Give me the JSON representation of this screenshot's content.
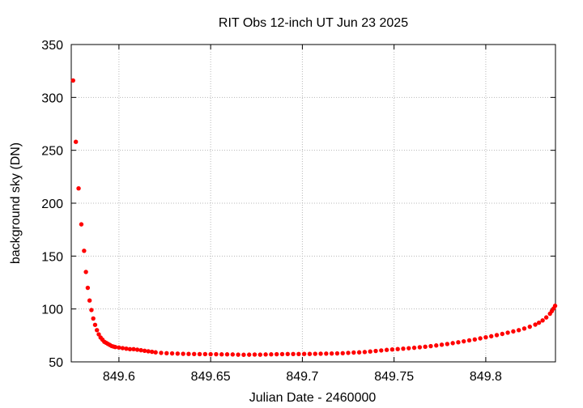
{
  "chart_data": {
    "type": "scatter",
    "title": "RIT Obs 12-inch UT Jun 23 2025",
    "xlabel": "Julian Date - 2460000",
    "ylabel": "background sky (DN)",
    "xlim": [
      849.574,
      849.838
    ],
    "ylim": [
      50,
      350
    ],
    "xticks": [
      849.6,
      849.65,
      849.7,
      849.75,
      849.8
    ],
    "xtick_labels": [
      "849.6",
      "849.65",
      "849.7",
      "849.75",
      "849.8"
    ],
    "yticks": [
      50,
      100,
      150,
      200,
      250,
      300,
      350
    ],
    "ytick_labels": [
      "50",
      "100",
      "150",
      "200",
      "250",
      "300",
      "350"
    ],
    "grid": true,
    "point_color": "#ff0000",
    "series": [
      {
        "points": [
          [
            849.575,
            316
          ],
          [
            849.5765,
            258
          ],
          [
            849.578,
            214
          ],
          [
            849.5795,
            180
          ],
          [
            849.581,
            155
          ],
          [
            849.582,
            135
          ],
          [
            849.583,
            120
          ],
          [
            849.584,
            108
          ],
          [
            849.585,
            99
          ],
          [
            849.586,
            91
          ],
          [
            849.587,
            85
          ],
          [
            849.588,
            80
          ],
          [
            849.589,
            76
          ],
          [
            849.59,
            73
          ],
          [
            849.591,
            71
          ],
          [
            849.592,
            69
          ],
          [
            849.593,
            68
          ],
          [
            849.594,
            67
          ],
          [
            849.595,
            66
          ],
          [
            849.596,
            65
          ],
          [
            849.597,
            64.5
          ],
          [
            849.598,
            64
          ],
          [
            849.6,
            63.5
          ],
          [
            849.602,
            63
          ],
          [
            849.604,
            62.5
          ],
          [
            849.606,
            62
          ],
          [
            849.608,
            62
          ],
          [
            849.61,
            61.5
          ],
          [
            849.612,
            61
          ],
          [
            849.614,
            60.5
          ],
          [
            849.616,
            60
          ],
          [
            849.618,
            59.5
          ],
          [
            849.62,
            59
          ],
          [
            849.623,
            58.5
          ],
          [
            849.626,
            58.2
          ],
          [
            849.629,
            58
          ],
          [
            849.632,
            57.8
          ],
          [
            849.635,
            57.6
          ],
          [
            849.638,
            57.5
          ],
          [
            849.641,
            57.4
          ],
          [
            849.644,
            57.3
          ],
          [
            849.647,
            57.3
          ],
          [
            849.65,
            57.2
          ],
          [
            849.653,
            57.2
          ],
          [
            849.656,
            57.1
          ],
          [
            849.659,
            57.1
          ],
          [
            849.662,
            57
          ],
          [
            849.665,
            56.8
          ],
          [
            849.668,
            56.7
          ],
          [
            849.671,
            56.8
          ],
          [
            849.674,
            56.9
          ],
          [
            849.677,
            56.8
          ],
          [
            849.68,
            57
          ],
          [
            849.683,
            57.1
          ],
          [
            849.686,
            57.2
          ],
          [
            849.689,
            57.3
          ],
          [
            849.692,
            57.4
          ],
          [
            849.695,
            57.4
          ],
          [
            849.698,
            57.4
          ],
          [
            849.701,
            57.5
          ],
          [
            849.704,
            57.5
          ],
          [
            849.707,
            57.6
          ],
          [
            849.71,
            57.7
          ],
          [
            849.713,
            57.8
          ],
          [
            849.716,
            57.9
          ],
          [
            849.719,
            58
          ],
          [
            849.722,
            58.2
          ],
          [
            849.725,
            58.5
          ],
          [
            849.728,
            58.8
          ],
          [
            849.731,
            59
          ],
          [
            849.734,
            59.3
          ],
          [
            849.737,
            59.8
          ],
          [
            849.74,
            60.3
          ],
          [
            849.743,
            60.8
          ],
          [
            849.746,
            61.3
          ],
          [
            849.749,
            61.7
          ],
          [
            849.752,
            62.1
          ],
          [
            849.755,
            62.5
          ],
          [
            849.758,
            62.9
          ],
          [
            849.761,
            63.3
          ],
          [
            849.764,
            63.8
          ],
          [
            849.767,
            64.3
          ],
          [
            849.77,
            64.9
          ],
          [
            849.773,
            65.5
          ],
          [
            849.776,
            66.2
          ],
          [
            849.779,
            66.9
          ],
          [
            849.782,
            67.7
          ],
          [
            849.785,
            68.5
          ],
          [
            849.788,
            69.4
          ],
          [
            849.791,
            70.3
          ],
          [
            849.794,
            71.2
          ],
          [
            849.797,
            72.2
          ],
          [
            849.8,
            73.2
          ],
          [
            849.803,
            74.2
          ],
          [
            849.806,
            75.3
          ],
          [
            849.809,
            76.4
          ],
          [
            849.812,
            77.6
          ],
          [
            849.815,
            78.8
          ],
          [
            849.818,
            80
          ],
          [
            849.821,
            81.5
          ],
          [
            849.824,
            83.2
          ],
          [
            849.827,
            85.2
          ],
          [
            849.829,
            87
          ],
          [
            849.831,
            89.2
          ],
          [
            849.833,
            92
          ],
          [
            849.835,
            95.5
          ],
          [
            849.836,
            98
          ],
          [
            849.837,
            100.5
          ],
          [
            849.8378,
            103
          ]
        ]
      }
    ]
  }
}
